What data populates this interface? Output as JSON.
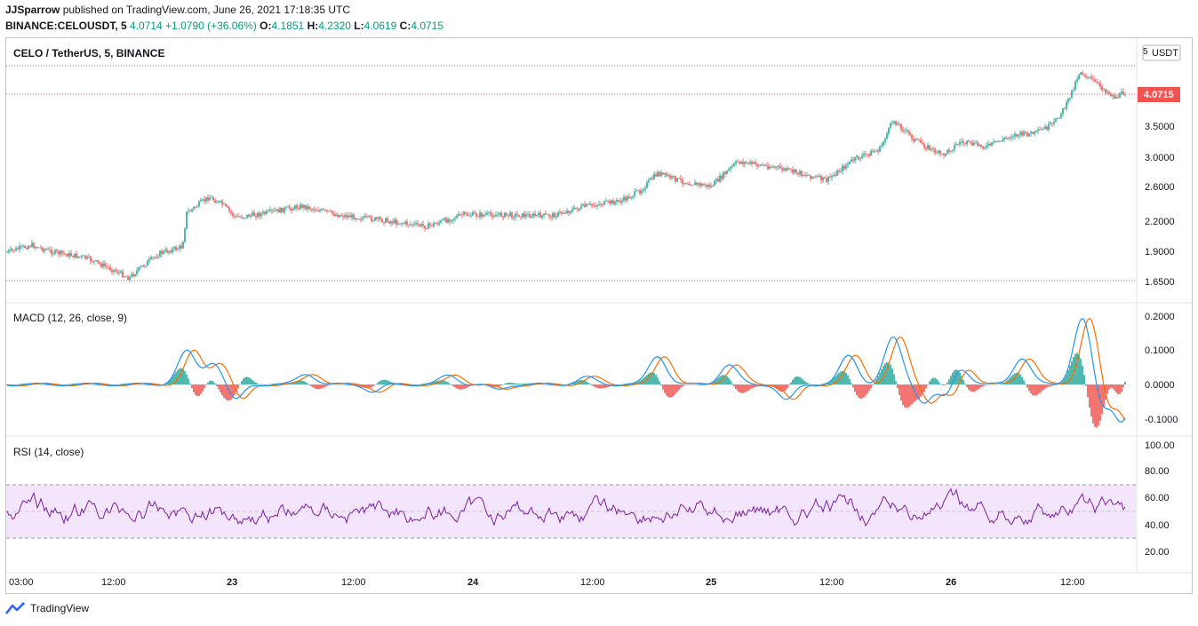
{
  "header": {
    "author": "JJSparrow",
    "published_text": "published on TradingView.com, June 26, 2021 17:18:35 UTC",
    "symbol": "BINANCE:CELOUSDT, 5",
    "last": "4.0714",
    "change": "+1.0790 (+36.06%)",
    "open_label": "O:",
    "open": "4.1851",
    "high_label": "H:",
    "high": "4.2320",
    "low_label": "L:",
    "low": "4.0619",
    "close_label": "C:",
    "close": "4.0715"
  },
  "main_pane": {
    "title": "CELO / TetherUS, 5, BINANCE",
    "currency": "USDT",
    "currency_prefix": "5",
    "price_badge": "4.0715",
    "y_ticks": [
      "3.5000",
      "3.0000",
      "2.6000",
      "2.2000",
      "1.9000",
      "1.6500"
    ]
  },
  "macd_pane": {
    "title": "MACD (12, 26, close, 9)",
    "y_ticks": [
      "0.2000",
      "0.1000",
      "0.0000",
      "-0.1000"
    ]
  },
  "rsi_pane": {
    "title": "RSI (14, close)",
    "y_ticks": [
      "100.00",
      "80.00",
      "60.00",
      "40.00",
      "20.00"
    ]
  },
  "x_axis": {
    "labels": [
      "03:00",
      "12:00",
      "23",
      "12:00",
      "24",
      "12:00",
      "25",
      "12:00",
      "26",
      "12:00"
    ]
  },
  "footer": {
    "brand": "TradingView"
  },
  "colors": {
    "up": "#26a69a",
    "down": "#ef5350",
    "macd_line": "#2196f3",
    "signal_line": "#ff6d00",
    "rsi_line": "#7b1fa2",
    "rsi_band": "#f3e5fb",
    "badge": "#ef5350"
  }
}
